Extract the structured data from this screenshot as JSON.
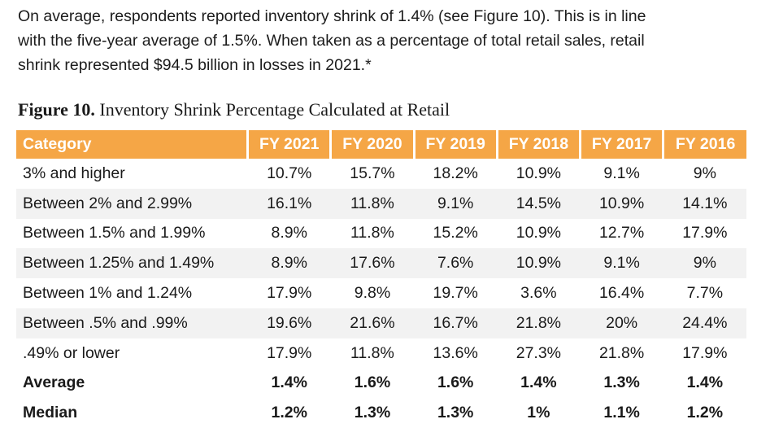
{
  "intro": {
    "lines": [
      "On average, respondents reported inventory shrink of 1.4% (see Figure 10). This is in line",
      "with the five-year average of 1.5%. When taken as a percentage of total retail sales, retail",
      "shrink represented $94.5 billion in losses in 2021.*"
    ]
  },
  "figure": {
    "label": "Figure 10.",
    "title": "Inventory Shrink Percentage Calculated at Retail"
  },
  "table": {
    "header_color": "#f5a646",
    "headers": [
      "Category",
      "FY 2021",
      "FY 2020",
      "FY 2019",
      "FY 2018",
      "FY 2017",
      "FY 2016"
    ],
    "rows": [
      [
        "3% and higher",
        "10.7%",
        "15.7%",
        "18.2%",
        "10.9%",
        "9.1%",
        "9%"
      ],
      [
        "Between 2% and 2.99%",
        "16.1%",
        "11.8%",
        "9.1%",
        "14.5%",
        "10.9%",
        "14.1%"
      ],
      [
        "Between 1.5% and 1.99%",
        "8.9%",
        "11.8%",
        "15.2%",
        "10.9%",
        "12.7%",
        "17.9%"
      ],
      [
        "Between 1.25% and 1.49%",
        "8.9%",
        "17.6%",
        "7.6%",
        "10.9%",
        "9.1%",
        "9%"
      ],
      [
        "Between 1% and 1.24%",
        "17.9%",
        "9.8%",
        "19.7%",
        "3.6%",
        "16.4%",
        "7.7%"
      ],
      [
        "Between .5% and .99%",
        "19.6%",
        "21.6%",
        "16.7%",
        "21.8%",
        "20%",
        "24.4%"
      ],
      [
        ".49% or lower",
        "17.9%",
        "11.8%",
        "13.6%",
        "27.3%",
        "21.8%",
        "17.9%"
      ],
      [
        "Average",
        "1.4%",
        "1.6%",
        "1.6%",
        "1.4%",
        "1.3%",
        "1.4%"
      ],
      [
        "Median",
        "1.2%",
        "1.3%",
        "1.3%",
        "1%",
        "1.1%",
        "1.2%"
      ]
    ]
  }
}
